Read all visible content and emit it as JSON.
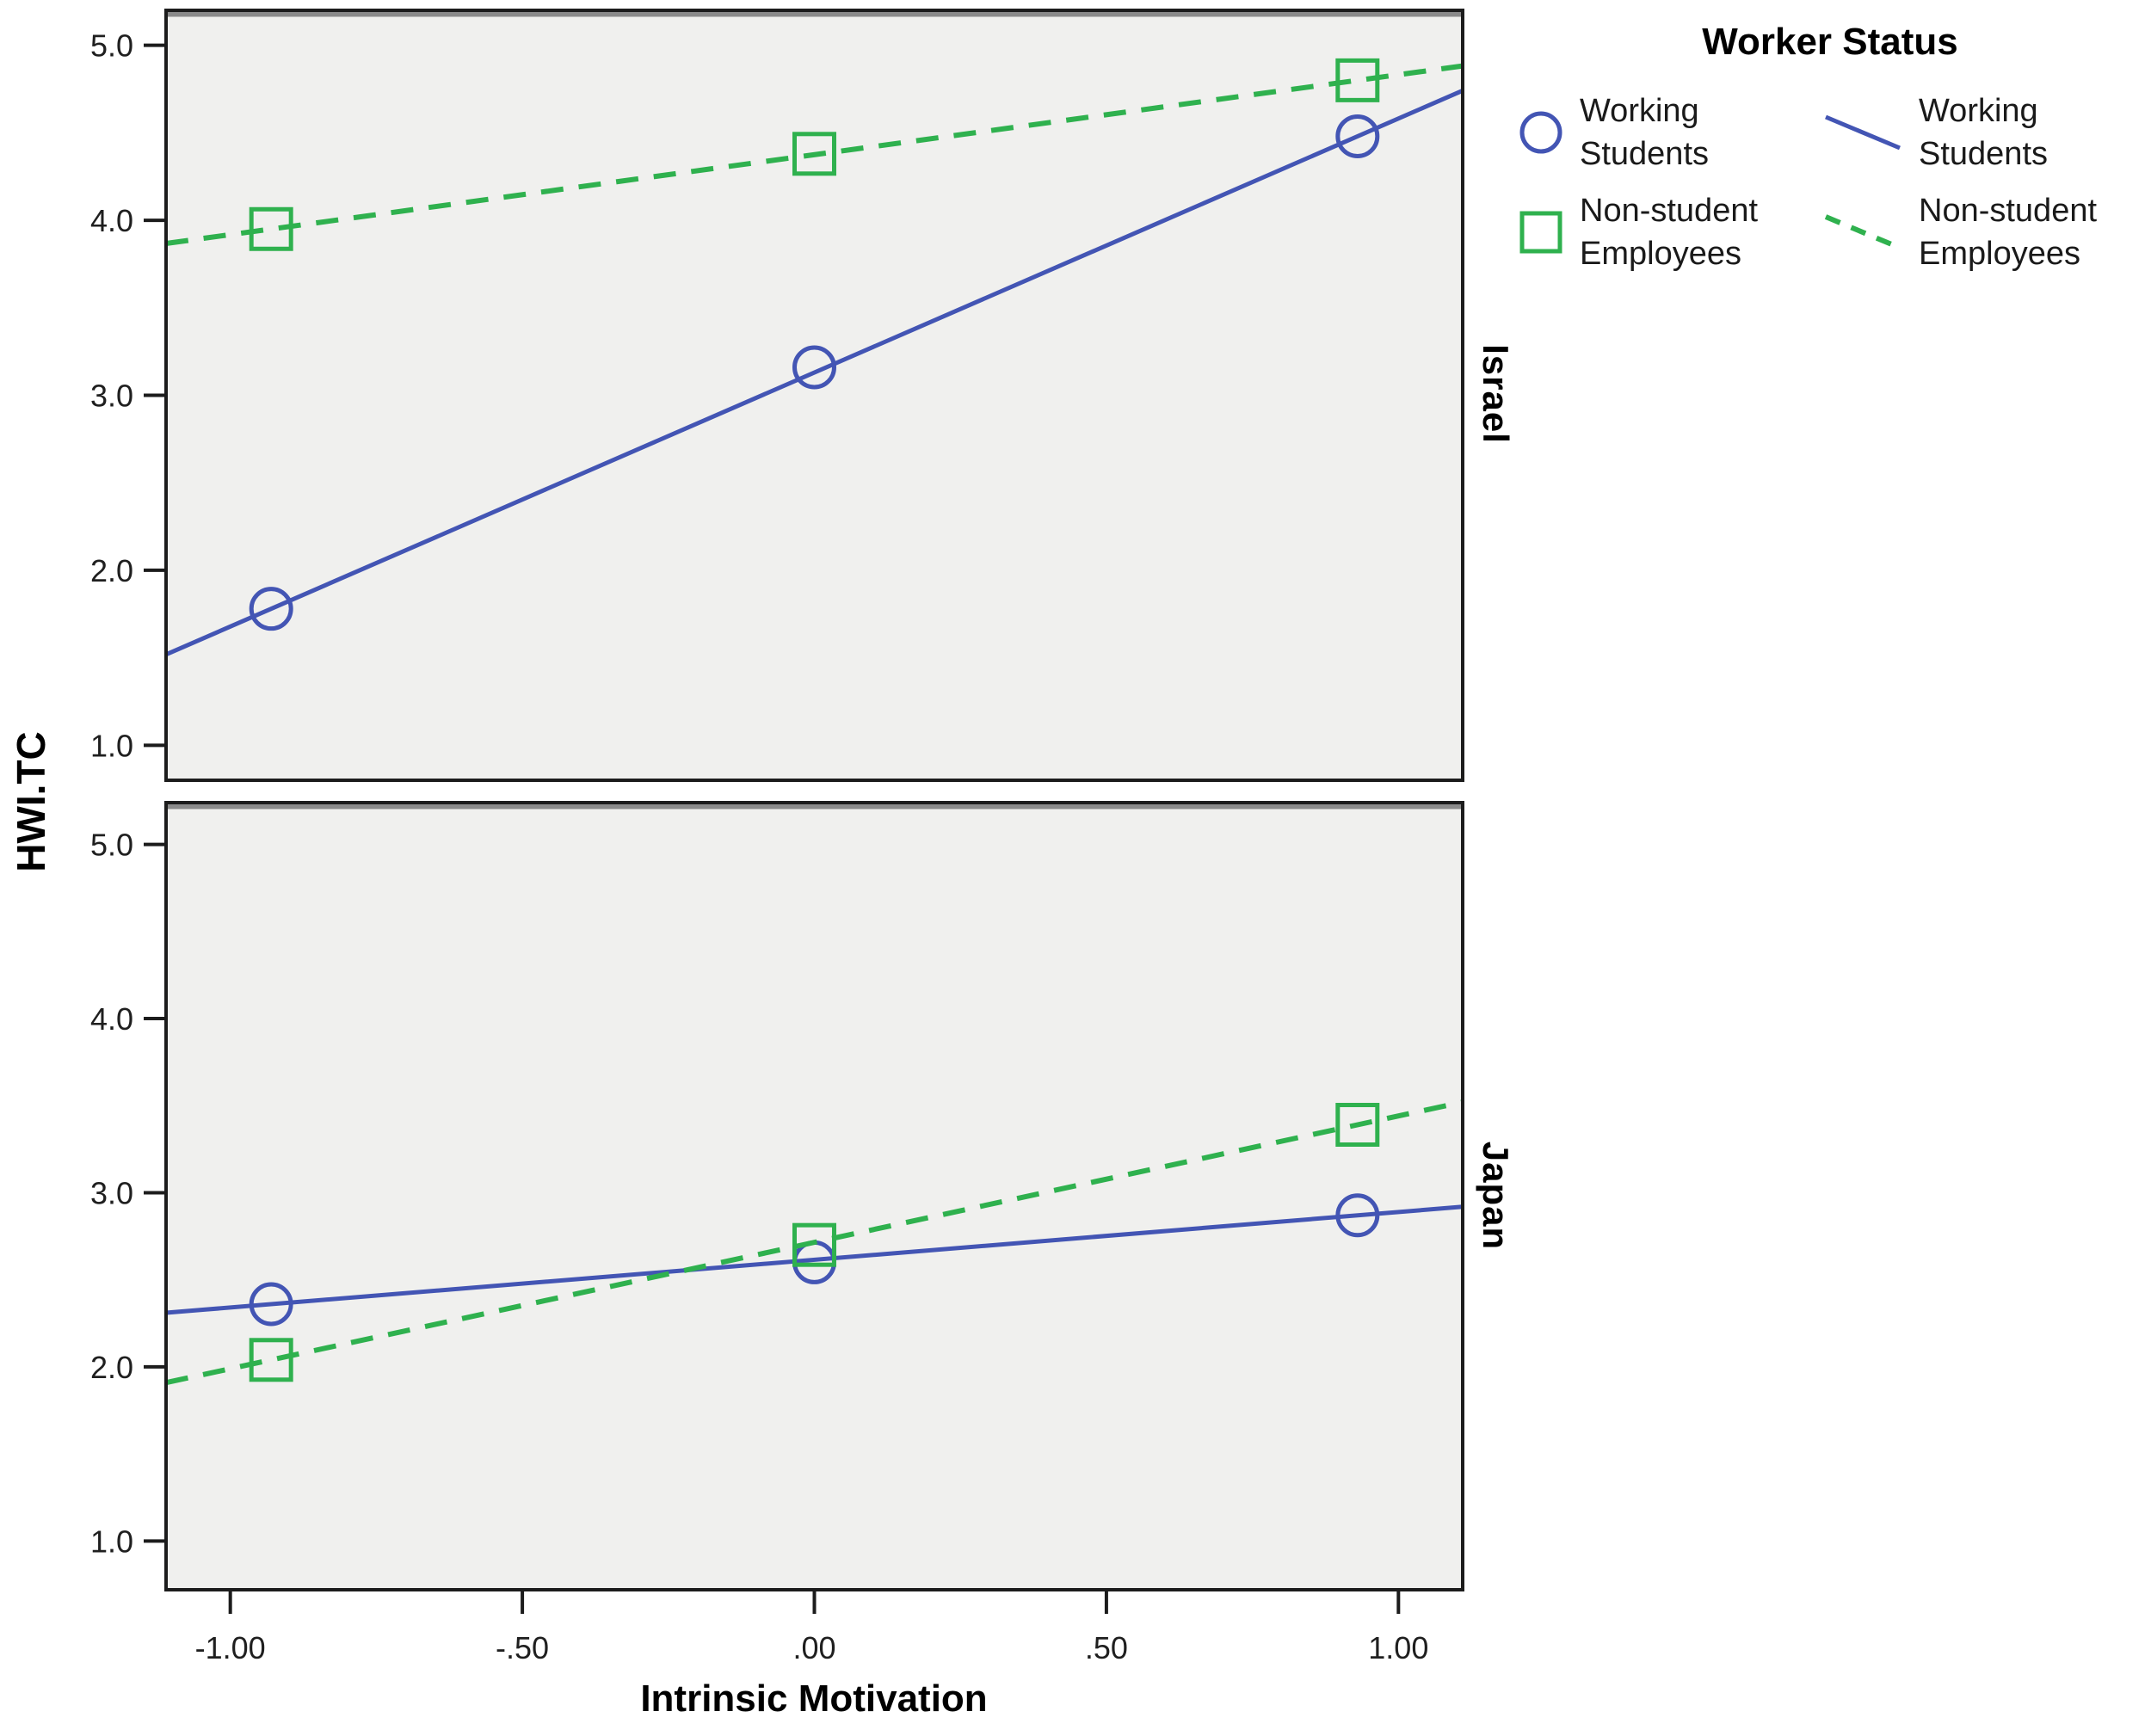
{
  "colors": {
    "blue": "#4355b4",
    "green": "#2fb14e",
    "panel_bg": "#f0f0ee",
    "panel_border": "#1c1c1c",
    "panel_top_strip": "#8a8a8a",
    "tick_text": "#1f1f1f"
  },
  "legend": {
    "title": "Worker Status",
    "marker_items": [
      {
        "label": "Working\nStudents",
        "marker": "circle",
        "color": "#4355b4"
      },
      {
        "label": "Non-student\nEmployees",
        "marker": "square",
        "color": "#2fb14e"
      }
    ],
    "line_items": [
      {
        "label": "Working\nStudents",
        "style": "solid",
        "color": "#4355b4"
      },
      {
        "label": "Non-student\nEmployees",
        "style": "dashed",
        "color": "#2fb14e"
      }
    ]
  },
  "chart_data": {
    "type": "line",
    "xlabel": "Intrinsic Motivation",
    "ylabel": "HWI.TC",
    "x": [
      -0.93,
      0.0,
      0.93
    ],
    "xlim": [
      -1.11,
      1.11
    ],
    "xticks": [
      -1.0,
      -0.5,
      0.0,
      0.5,
      1.0
    ],
    "xtick_labels": [
      "-1.00",
      "-.50",
      ".00",
      ".50",
      "1.00"
    ],
    "yticks": [
      5.0,
      4.0,
      3.0,
      2.0,
      1.0
    ],
    "ytick_labels": [
      "5.0",
      "4.0",
      "3.0",
      "2.0",
      "1.0"
    ],
    "legend_title": "Worker Status",
    "grid": false,
    "legend_position": "top-right outside",
    "panels": [
      {
        "panel_label": "Israel",
        "ylim": [
          0.8,
          5.2
        ],
        "series": [
          {
            "name": "Working Students",
            "marker": "circle",
            "line_style": "solid",
            "color": "#4355b4",
            "values": [
              1.78,
              3.16,
              4.48
            ]
          },
          {
            "name": "Non-student Employees",
            "marker": "square",
            "line_style": "dashed",
            "color": "#2fb14e",
            "values": [
              3.95,
              4.38,
              4.8
            ]
          }
        ]
      },
      {
        "panel_label": "Japan",
        "ylim": [
          0.72,
          5.24
        ],
        "series": [
          {
            "name": "Working Students",
            "marker": "circle",
            "line_style": "solid",
            "color": "#4355b4",
            "values": [
              2.36,
              2.6,
              2.87
            ]
          },
          {
            "name": "Non-student Employees",
            "marker": "square",
            "line_style": "dashed",
            "color": "#2fb14e",
            "values": [
              2.04,
              2.7,
              3.39
            ]
          }
        ]
      }
    ]
  }
}
